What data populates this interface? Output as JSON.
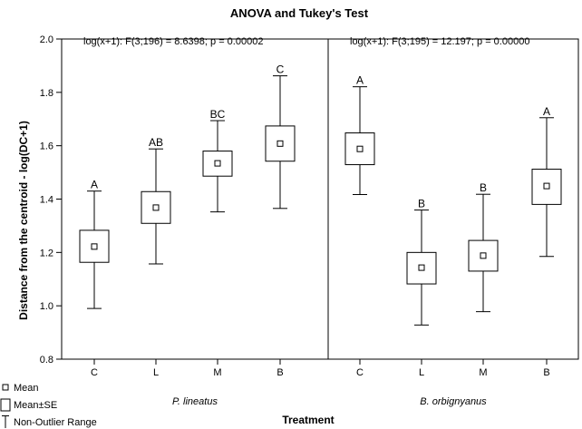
{
  "chart_data": {
    "type": "box",
    "title": "ANOVA and Tukey's Test",
    "xlabel": "Treatment",
    "ylabel": "Distance from the centroid - log(DC+1)",
    "ylim": [
      0.8,
      2.0
    ],
    "yticks": [
      "0.8",
      "1.0",
      "1.2",
      "1.4",
      "1.6",
      "1.8",
      "2.0"
    ],
    "grid": false,
    "legend_position": "bottom-left",
    "legend": [
      {
        "key": "mean",
        "label": "Mean"
      },
      {
        "key": "se",
        "label": "Mean±SE"
      },
      {
        "key": "range",
        "label": "Non-Outlier Range"
      }
    ],
    "panels": [
      {
        "group": "P. lineatus",
        "annotation": "log(x+1):   F(3;196) = 8.6398; p = 0.00002",
        "categories": [
          "C",
          "L",
          "M",
          "B"
        ],
        "mean": [
          1.222,
          1.368,
          1.534,
          1.608
        ],
        "se_low": [
          1.163,
          1.309,
          1.486,
          1.542
        ],
        "se_high": [
          1.283,
          1.428,
          1.58,
          1.674
        ],
        "min": [
          0.99,
          1.157,
          1.352,
          1.365
        ],
        "max": [
          1.43,
          1.588,
          1.694,
          1.862
        ],
        "letters": [
          "A",
          "AB",
          "BC",
          "C"
        ]
      },
      {
        "group": "B. orbignyanus",
        "annotation": "log(x+1):   F(3;195) = 12.197; p = 0.00000",
        "categories": [
          "C",
          "L",
          "M",
          "B"
        ],
        "mean": [
          1.588,
          1.143,
          1.188,
          1.449
        ],
        "se_low": [
          1.529,
          1.082,
          1.13,
          1.38
        ],
        "se_high": [
          1.648,
          1.2,
          1.245,
          1.512
        ],
        "min": [
          1.417,
          0.928,
          0.978,
          1.185
        ],
        "max": [
          1.821,
          1.359,
          1.418,
          1.705
        ],
        "letters": [
          "A",
          "B",
          "B",
          "A"
        ]
      }
    ]
  }
}
